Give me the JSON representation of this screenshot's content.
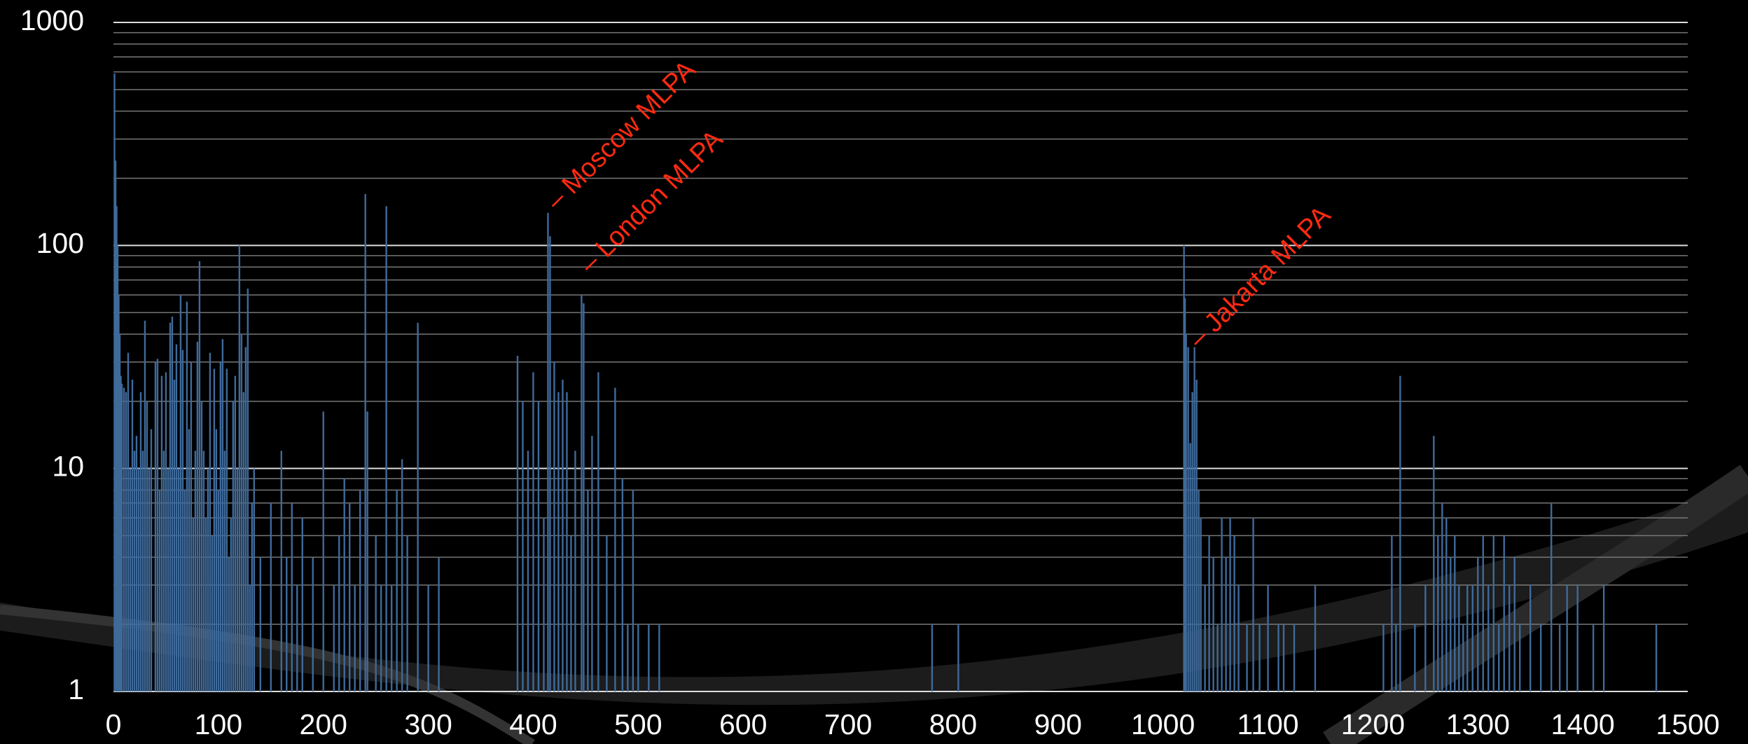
{
  "chart_data": {
    "type": "bar",
    "log_y": true,
    "grid": true,
    "color": "#3f6a9a",
    "xlim": [
      0,
      1500
    ],
    "xticks": [
      0,
      100,
      200,
      300,
      400,
      500,
      600,
      700,
      800,
      900,
      1000,
      1100,
      1200,
      1300,
      1400,
      1500
    ],
    "ylim": [
      1,
      1000
    ],
    "yticks": [
      1,
      10,
      100,
      1000
    ],
    "minor_yticks": [
      2,
      3,
      4,
      5,
      6,
      7,
      8,
      9,
      20,
      30,
      40,
      50,
      60,
      70,
      80,
      90,
      200,
      300,
      400,
      500,
      600,
      700,
      800,
      900
    ],
    "x": [
      1,
      2,
      3,
      4,
      5,
      6,
      7,
      8,
      10,
      12,
      14,
      16,
      18,
      20,
      22,
      24,
      26,
      28,
      30,
      32,
      34,
      36,
      40,
      42,
      44,
      46,
      48,
      50,
      52,
      54,
      56,
      58,
      60,
      62,
      64,
      66,
      68,
      70,
      72,
      74,
      76,
      78,
      80,
      82,
      84,
      86,
      88,
      90,
      92,
      94,
      96,
      98,
      100,
      102,
      104,
      106,
      108,
      110,
      112,
      114,
      116,
      118,
      120,
      122,
      124,
      126,
      128,
      130,
      132,
      134,
      140,
      150,
      160,
      165,
      170,
      175,
      180,
      190,
      200,
      210,
      215,
      220,
      225,
      230,
      235,
      240,
      242,
      250,
      255,
      260,
      265,
      270,
      275,
      280,
      290,
      300,
      310,
      385,
      390,
      395,
      400,
      405,
      410,
      414,
      416,
      420,
      424,
      428,
      432,
      436,
      440,
      446,
      448,
      452,
      456,
      462,
      470,
      478,
      485,
      490,
      495,
      500,
      510,
      520,
      780,
      805,
      1020,
      1021,
      1022,
      1024,
      1026,
      1028,
      1030,
      1032,
      1034,
      1036,
      1040,
      1044,
      1048,
      1052,
      1056,
      1060,
      1064,
      1068,
      1072,
      1080,
      1086,
      1092,
      1100,
      1110,
      1115,
      1125,
      1145,
      1210,
      1218,
      1222,
      1226,
      1240,
      1250,
      1258,
      1262,
      1266,
      1270,
      1274,
      1278,
      1282,
      1286,
      1290,
      1295,
      1300,
      1305,
      1310,
      1315,
      1320,
      1325,
      1330,
      1335,
      1340,
      1350,
      1360,
      1370,
      1378,
      1385,
      1395,
      1410,
      1420,
      1470
    ],
    "values": [
      590,
      240,
      150,
      100,
      60,
      40,
      26,
      24,
      23,
      22,
      33,
      10,
      25,
      12,
      14,
      10,
      22,
      12,
      46,
      20,
      10,
      15,
      30,
      31,
      8,
      26,
      12,
      27,
      10,
      45,
      48,
      25,
      36,
      10,
      60,
      34,
      8,
      56,
      15,
      30,
      6,
      12,
      37,
      85,
      20,
      12,
      6,
      10,
      33,
      5,
      28,
      15,
      8,
      30,
      38,
      12,
      28,
      4,
      6,
      20,
      26,
      10,
      100,
      40,
      22,
      35,
      64,
      3,
      7,
      10,
      4,
      7,
      12,
      4,
      7,
      3,
      6,
      4,
      18,
      3,
      5,
      9,
      7,
      3,
      8,
      170,
      18,
      5,
      3,
      150,
      3,
      8,
      11,
      5,
      45,
      3,
      4,
      32,
      20,
      12,
      27,
      20,
      6,
      140,
      110,
      30,
      22,
      25,
      22,
      5,
      12,
      60,
      55,
      8,
      14,
      27,
      5,
      23,
      9,
      2,
      8,
      2,
      2,
      2,
      2,
      2,
      100,
      58,
      40,
      35,
      13,
      22,
      35,
      25,
      8,
      6,
      3,
      5,
      4,
      2,
      6,
      4,
      6,
      5,
      3,
      2,
      6,
      2,
      3,
      2,
      2,
      2,
      3,
      2,
      5,
      2,
      26,
      2,
      3,
      14,
      5,
      7,
      6,
      4,
      5,
      3,
      2,
      3,
      3,
      4,
      5,
      3,
      5,
      2,
      5,
      3,
      4,
      2,
      3,
      2,
      7,
      2,
      3,
      3,
      2,
      3,
      2
    ],
    "annotations": [
      {
        "text": "– Moscow MLPA",
        "x": 418,
        "y": 150
      },
      {
        "text": "– London MLPA",
        "x": 450,
        "y": 78
      },
      {
        "text": "– Jakarta MLPA",
        "x": 1030,
        "y": 36
      }
    ]
  }
}
